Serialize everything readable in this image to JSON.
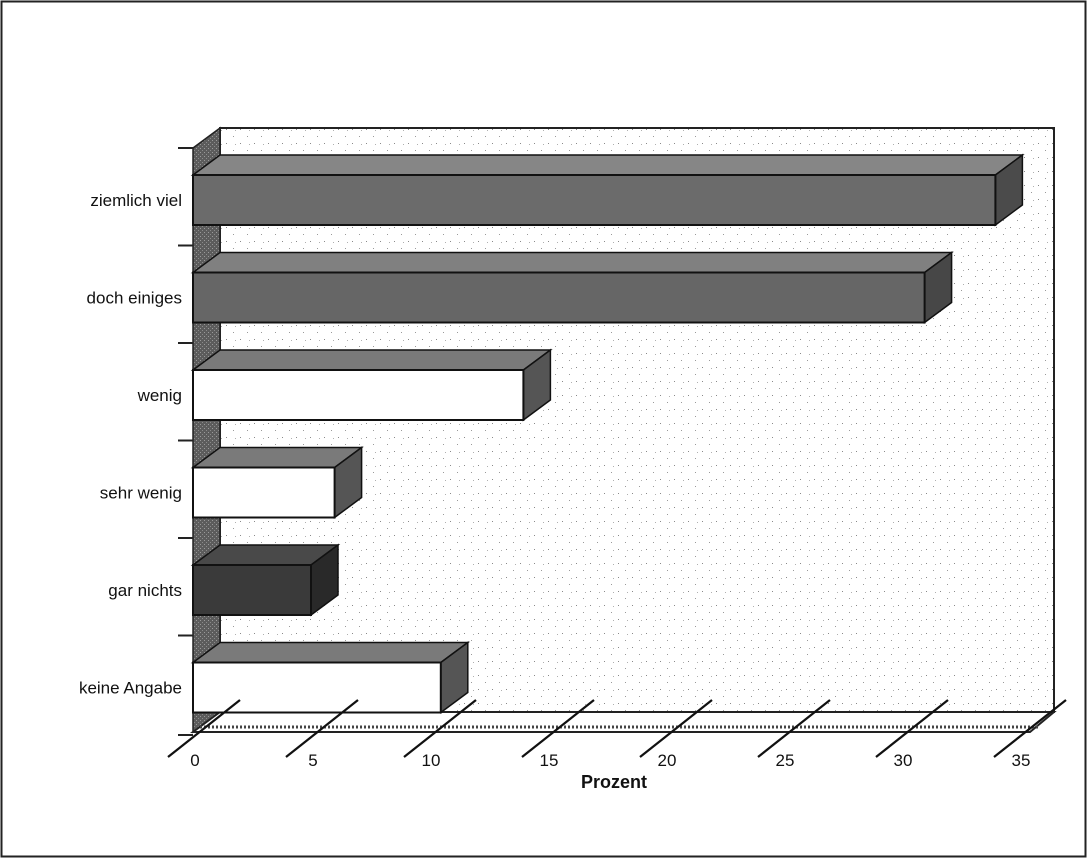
{
  "chart_data": {
    "type": "bar",
    "orientation": "horizontal",
    "three_d": true,
    "categories": [
      "ziemlich viel",
      "doch einiges",
      "wenig",
      "sehr wenig",
      "gar nichts",
      "keine Angabe"
    ],
    "values": [
      34,
      31,
      14,
      6,
      5,
      10.5
    ],
    "bar_colors": [
      "#6b6b6b",
      "#666666",
      "#ffffff",
      "#ffffff",
      "#3a3a3a",
      "#ffffff"
    ],
    "title": "",
    "xlabel": "Prozent",
    "ylabel": "",
    "xlim": [
      0,
      35
    ],
    "xticks": [
      "0",
      "5",
      "10",
      "15",
      "20",
      "25",
      "30",
      "35"
    ],
    "grid": false,
    "legend": "none"
  }
}
